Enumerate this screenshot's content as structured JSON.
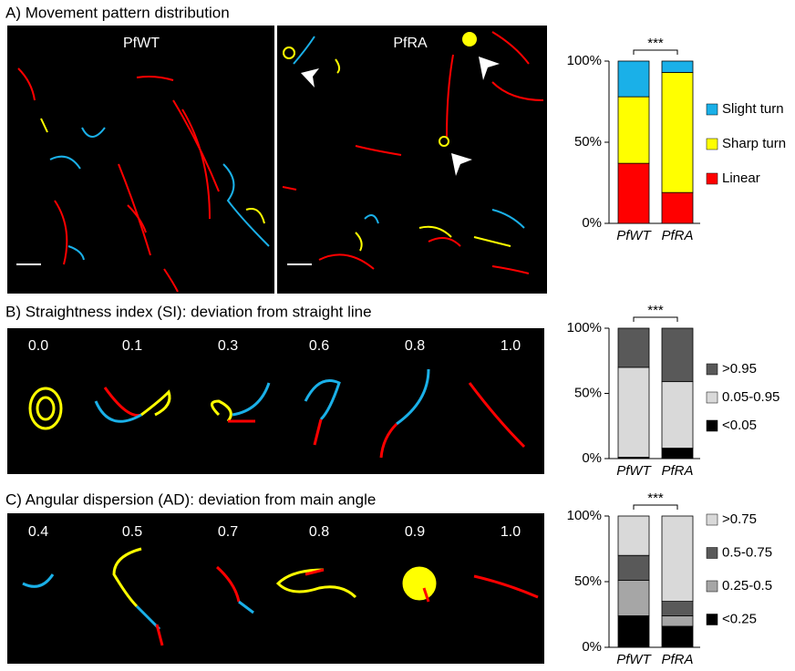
{
  "panels": [
    {
      "title": "A) Movement pattern distribution",
      "image_labels": [
        "PfWT",
        "PfRA"
      ]
    },
    {
      "title": "B) Straightness index (SI): deviation from straight line",
      "image_labels": [
        "0.0",
        "0.1",
        "0.3",
        "0.6",
        "0.8",
        "1.0"
      ]
    },
    {
      "title": "C) Angular dispersion (AD): deviation from main angle",
      "image_labels": [
        "0.4",
        "0.5",
        "0.7",
        "0.8",
        "0.9",
        "1.0"
      ]
    }
  ],
  "chart_data": [
    {
      "type": "stacked_bar",
      "annotation": "***",
      "categories": [
        "PfWT",
        "PfRA"
      ],
      "series": [
        {
          "name": "Linear",
          "color": "#ff0000",
          "values": [
            37,
            19
          ]
        },
        {
          "name": "Sharp turn",
          "color": "#ffff00",
          "values": [
            41,
            74
          ]
        },
        {
          "name": "Slight turn",
          "color": "#1ab0e8",
          "values": [
            22,
            7
          ]
        }
      ],
      "ylim": [
        0,
        100
      ],
      "yticks": [
        {
          "value": 0,
          "label": "0%"
        },
        {
          "value": 50,
          "label": "50%"
        },
        {
          "value": 100,
          "label": "100%"
        }
      ]
    },
    {
      "type": "stacked_bar",
      "annotation": "***",
      "categories": [
        "PfWT",
        "PfRA"
      ],
      "series": [
        {
          "name": "<0.05",
          "color": "#000000",
          "values": [
            1,
            8
          ]
        },
        {
          "name": "0.05-0.95",
          "color": "#d9d9d9",
          "values": [
            69,
            51
          ]
        },
        {
          "name": ">0.95",
          "color": "#595959",
          "values": [
            30,
            41
          ]
        }
      ],
      "ylim": [
        0,
        100
      ],
      "yticks": [
        {
          "value": 0,
          "label": "0%"
        },
        {
          "value": 50,
          "label": "50%"
        },
        {
          "value": 100,
          "label": "100%"
        }
      ]
    },
    {
      "type": "stacked_bar",
      "annotation": "***",
      "categories": [
        "PfWT",
        "PfRA"
      ],
      "series": [
        {
          "name": "<0.25",
          "color": "#000000",
          "values": [
            24,
            16
          ]
        },
        {
          "name": "0.25-0.5",
          "color": "#a6a6a6",
          "values": [
            27,
            8
          ]
        },
        {
          "name": "0.5-0.75",
          "color": "#595959",
          "values": [
            19,
            11
          ]
        },
        {
          "name": ">0.75",
          "color": "#d9d9d9",
          "values": [
            30,
            65
          ]
        }
      ],
      "ylim": [
        0,
        100
      ],
      "yticks": [
        {
          "value": 0,
          "label": "0%"
        },
        {
          "value": 50,
          "label": "50%"
        },
        {
          "value": 100,
          "label": "100%"
        }
      ]
    }
  ]
}
